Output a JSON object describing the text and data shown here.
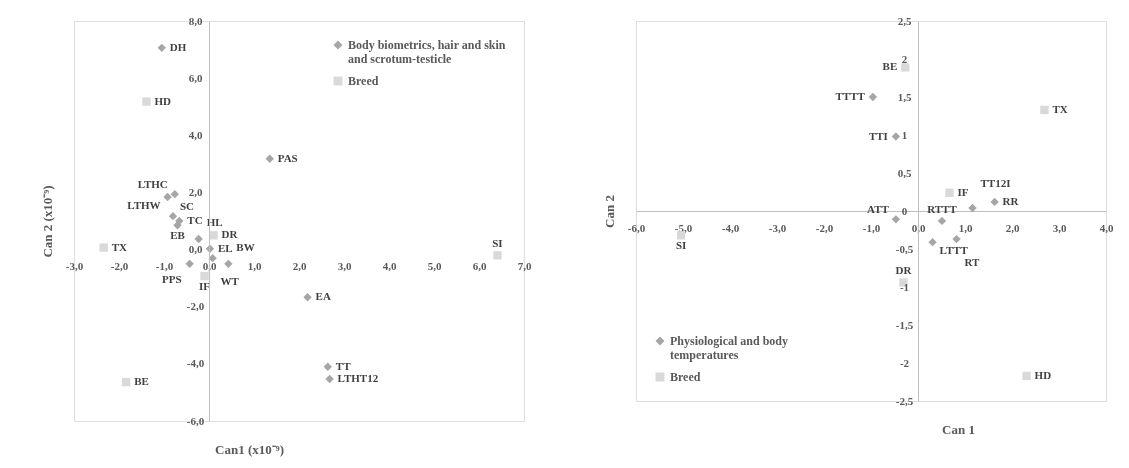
{
  "chart_data": [
    {
      "type": "scatter",
      "xlabel": "Can1 (x10⁻⁹)",
      "ylabel": "Can 2 (x10⁻⁹)",
      "xlim": [
        -3,
        7
      ],
      "ylim": [
        -6,
        8
      ],
      "xticks": [
        {
          "value": -3,
          "label": "-3,0"
        },
        {
          "value": -2,
          "label": "-2,0"
        },
        {
          "value": -1,
          "label": "-1,0"
        },
        {
          "value": 0,
          "label": "0,0"
        },
        {
          "value": 1,
          "label": "1,0"
        },
        {
          "value": 2,
          "label": "2,0"
        },
        {
          "value": 3,
          "label": "3,0"
        },
        {
          "value": 4,
          "label": "4,0"
        },
        {
          "value": 5,
          "label": "5,0"
        },
        {
          "value": 6,
          "label": "6,0"
        },
        {
          "value": 7,
          "label": "7,0"
        }
      ],
      "yticks": [
        {
          "value": -6,
          "label": "-6,0"
        },
        {
          "value": -4,
          "label": "-4,0"
        },
        {
          "value": -2,
          "label": "-2,0"
        },
        {
          "value": 0,
          "label": "0,0"
        },
        {
          "value": 2,
          "label": "2,0"
        },
        {
          "value": 4,
          "label": "4,0"
        },
        {
          "value": 6,
          "label": "6,0"
        },
        {
          "value": 8,
          "label": "8,0"
        }
      ],
      "grid": false,
      "legend": "top right",
      "series": [
        {
          "name": "Body biometrics, hair and skin and scrotum-testicle",
          "color": "#a6a6a6",
          "marker": "diamond",
          "x": [
            -1.05,
            1.35,
            -0.76,
            -0.92,
            -0.8,
            -0.66,
            -0.7,
            -0.23,
            0.02,
            0.08,
            -0.43,
            0.43,
            2.19,
            2.64,
            2.68
          ],
          "values": [
            7.06,
            3.18,
            1.94,
            1.84,
            1.17,
            1.0,
            0.85,
            0.37,
            0.03,
            -0.3,
            -0.5,
            -0.5,
            -1.67,
            -4.1,
            -4.53
          ]
        },
        {
          "name": "Breed",
          "color": "#d9d9d9",
          "marker": "square",
          "x": [
            -1.39,
            -2.34,
            0.1,
            -0.1,
            -1.84,
            6.41
          ],
          "values": [
            5.18,
            0.07,
            0.5,
            -0.93,
            -4.64,
            -0.2
          ]
        }
      ],
      "annotations": [
        {
          "text": "DH",
          "x": -1.05,
          "y": 7.06
        },
        {
          "text": "PAS",
          "x": 1.35,
          "y": 3.18
        },
        {
          "text": "LTHC",
          "x": -0.76,
          "y": 1.94
        },
        {
          "text": "LTHW",
          "x": -0.92,
          "y": 1.84
        },
        {
          "text": "SC",
          "x": -0.8,
          "y": 1.17
        },
        {
          "text": "TC",
          "x": -0.66,
          "y": 1.0
        },
        {
          "text": "EB",
          "x": -0.7,
          "y": 0.85
        },
        {
          "text": "HL",
          "x": -0.23,
          "y": 0.37
        },
        {
          "text": "EL",
          "x": 0.02,
          "y": 0.03
        },
        {
          "text": "WT",
          "x": 0.08,
          "y": -0.3
        },
        {
          "text": "PPS",
          "x": -0.43,
          "y": -0.5
        },
        {
          "text": "BW",
          "x": 0.43,
          "y": -0.5
        },
        {
          "text": "EA",
          "x": 2.19,
          "y": -1.67
        },
        {
          "text": "TT",
          "x": 2.64,
          "y": -4.1
        },
        {
          "text": "LTHT12",
          "x": 2.68,
          "y": -4.53
        },
        {
          "text": "HD",
          "x": -1.39,
          "y": 5.18
        },
        {
          "text": "TX",
          "x": -2.34,
          "y": 0.07
        },
        {
          "text": "DR",
          "x": 0.1,
          "y": 0.5
        },
        {
          "text": "IF",
          "x": -0.1,
          "y": -0.93
        },
        {
          "text": "BE",
          "x": -1.84,
          "y": -4.64
        },
        {
          "text": "SI",
          "x": 6.41,
          "y": -0.2
        }
      ]
    },
    {
      "type": "scatter",
      "xlabel": "Can 1",
      "ylabel": "Can 2",
      "xlim": [
        -6,
        4
      ],
      "ylim": [
        -2.5,
        2.5
      ],
      "xticks": [
        {
          "value": -6,
          "label": "-6,0"
        },
        {
          "value": -5,
          "label": "-5,0"
        },
        {
          "value": -4,
          "label": "-4,0"
        },
        {
          "value": -3,
          "label": "-3,0"
        },
        {
          "value": -2,
          "label": "-2,0"
        },
        {
          "value": -1,
          "label": "-1,0"
        },
        {
          "value": 0,
          "label": "0,0"
        },
        {
          "value": 1,
          "label": "1,0"
        },
        {
          "value": 2,
          "label": "2,0"
        },
        {
          "value": 3,
          "label": "3,0"
        },
        {
          "value": 4,
          "label": "4,0"
        }
      ],
      "yticks": [
        {
          "value": -2.5,
          "label": "-2,5"
        },
        {
          "value": -2,
          "label": "-2"
        },
        {
          "value": -1.5,
          "label": "-1,5"
        },
        {
          "value": -1,
          "label": "-1"
        },
        {
          "value": -0.5,
          "label": "-0,5"
        },
        {
          "value": 0,
          "label": "0"
        },
        {
          "value": 0.5,
          "label": "0,5"
        },
        {
          "value": 1,
          "label": "1"
        },
        {
          "value": 1.5,
          "label": "1,5"
        },
        {
          "value": 2,
          "label": "2"
        },
        {
          "value": 2.5,
          "label": "2,5"
        }
      ],
      "grid": false,
      "legend": "bottom left",
      "series": [
        {
          "name": "Physiological and body temperatures",
          "color": "#a6a6a6",
          "marker": "diamond",
          "x": [
            -0.96,
            -0.47,
            -0.47,
            0.51,
            0.31,
            0.82,
            1.16,
            1.63
          ],
          "values": [
            1.5,
            0.98,
            -0.11,
            -0.13,
            -0.41,
            -0.37,
            0.04,
            0.12
          ]
        },
        {
          "name": "Breed",
          "color": "#d9d9d9",
          "marker": "square",
          "x": [
            -0.27,
            2.69,
            0.67,
            -0.31,
            2.31,
            -5.04
          ],
          "values": [
            1.89,
            1.33,
            0.24,
            -0.94,
            -2.17,
            -0.32
          ]
        }
      ],
      "annotations": [
        {
          "text": "TTTT",
          "x": -0.96,
          "y": 1.5
        },
        {
          "text": "TTI",
          "x": -0.47,
          "y": 0.98
        },
        {
          "text": "ATT",
          "x": -0.47,
          "y": -0.11
        },
        {
          "text": "RTTT",
          "x": 0.51,
          "y": -0.13
        },
        {
          "text": "LTTT",
          "x": 0.31,
          "y": -0.41
        },
        {
          "text": "RT",
          "x": 0.82,
          "y": -0.37
        },
        {
          "text": "TT12I",
          "x": 1.16,
          "y": 0.04
        },
        {
          "text": "RR",
          "x": 1.63,
          "y": 0.12
        },
        {
          "text": "BE",
          "x": -0.27,
          "y": 1.89
        },
        {
          "text": "TX",
          "x": 2.69,
          "y": 1.33
        },
        {
          "text": "IF",
          "x": 0.67,
          "y": 0.24
        },
        {
          "text": "DR",
          "x": -0.31,
          "y": -0.94
        },
        {
          "text": "HD",
          "x": 2.31,
          "y": -2.17
        },
        {
          "text": "SI",
          "x": -5.04,
          "y": -0.32
        }
      ]
    }
  ]
}
